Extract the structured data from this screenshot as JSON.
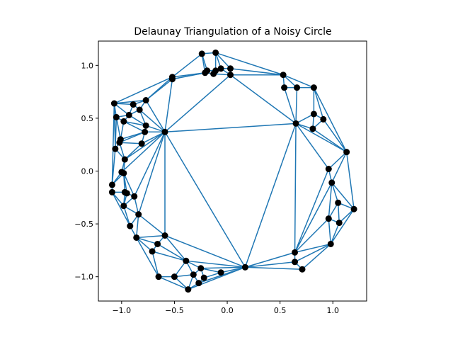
{
  "chart_data": {
    "type": "scatter",
    "title": "Delaunay Triangulation of a Noisy Circle",
    "xlabel": "",
    "ylabel": "",
    "xlim": [
      -1.22,
      1.32
    ],
    "ylim": [
      -1.23,
      1.23
    ],
    "xticks": [
      -1.0,
      -0.5,
      0.0,
      0.5,
      1.0
    ],
    "xtick_labels": [
      "−1.0",
      "−0.5",
      "0.0",
      "0.5",
      "1.0"
    ],
    "yticks": [
      -1.0,
      -0.5,
      0.0,
      0.5,
      1.0
    ],
    "ytick_labels": [
      "−1.0",
      "−0.5",
      "0.0",
      "0.5",
      "1.0"
    ],
    "grid": false,
    "edge_color": "#1f77b4",
    "point_color": "#000000",
    "points": [
      [
        -0.24,
        1.11
      ],
      [
        -0.11,
        1.12
      ],
      [
        -0.19,
        0.95
      ],
      [
        -0.21,
        0.93
      ],
      [
        -0.13,
        0.92
      ],
      [
        -0.11,
        0.95
      ],
      [
        -0.06,
        0.97
      ],
      [
        0.03,
        0.97
      ],
      [
        0.03,
        0.91
      ],
      [
        -0.52,
        0.89
      ],
      [
        -0.52,
        0.87
      ],
      [
        0.53,
        0.91
      ],
      [
        0.54,
        0.79
      ],
      [
        0.66,
        0.79
      ],
      [
        0.82,
        0.79
      ],
      [
        0.82,
        0.54
      ],
      [
        0.91,
        0.49
      ],
      [
        0.81,
        0.4
      ],
      [
        0.65,
        0.45
      ],
      [
        1.13,
        0.18
      ],
      [
        -0.77,
        0.67
      ],
      [
        -0.89,
        0.63
      ],
      [
        -1.07,
        0.64
      ],
      [
        -0.83,
        0.58
      ],
      [
        -0.93,
        0.53
      ],
      [
        -1.05,
        0.51
      ],
      [
        -0.98,
        0.47
      ],
      [
        -0.77,
        0.43
      ],
      [
        -0.78,
        0.37
      ],
      [
        -0.59,
        0.37
      ],
      [
        -1.01,
        0.3
      ],
      [
        -1.02,
        0.27
      ],
      [
        -0.81,
        0.26
      ],
      [
        -1.06,
        0.21
      ],
      [
        -0.97,
        0.11
      ],
      [
        -1.0,
        -0.01
      ],
      [
        -0.98,
        -0.02
      ],
      [
        -1.09,
        -0.13
      ],
      [
        -1.09,
        -0.2
      ],
      [
        -0.97,
        -0.2
      ],
      [
        -0.95,
        -0.21
      ],
      [
        -0.88,
        -0.24
      ],
      [
        -0.98,
        -0.33
      ],
      [
        -0.84,
        -0.41
      ],
      [
        -0.92,
        -0.52
      ],
      [
        -0.86,
        -0.63
      ],
      [
        -0.59,
        -0.61
      ],
      [
        -0.66,
        -0.69
      ],
      [
        -0.71,
        -0.76
      ],
      [
        -0.65,
        -1.0
      ],
      [
        -0.5,
        -1.0
      ],
      [
        -0.39,
        -0.85
      ],
      [
        -0.32,
        -0.98
      ],
      [
        -0.25,
        -0.92
      ],
      [
        -0.22,
        -1.01
      ],
      [
        -0.27,
        -1.06
      ],
      [
        -0.37,
        -1.12
      ],
      [
        -0.06,
        -0.96
      ],
      [
        0.17,
        -0.91
      ],
      [
        0.64,
        -0.77
      ],
      [
        0.64,
        -0.86
      ],
      [
        0.71,
        -0.93
      ],
      [
        0.98,
        -0.69
      ],
      [
        0.96,
        -0.45
      ],
      [
        1.06,
        -0.49
      ],
      [
        1.05,
        -0.3
      ],
      [
        1.2,
        -0.36
      ],
      [
        0.99,
        -0.11
      ],
      [
        0.96,
        0.02
      ]
    ],
    "edges": [
      [
        0,
        1
      ],
      [
        0,
        2
      ],
      [
        0,
        3
      ],
      [
        0,
        9
      ],
      [
        1,
        5
      ],
      [
        1,
        6
      ],
      [
        1,
        7
      ],
      [
        1,
        11
      ],
      [
        2,
        3
      ],
      [
        2,
        5
      ],
      [
        3,
        4
      ],
      [
        3,
        9
      ],
      [
        3,
        10
      ],
      [
        4,
        5
      ],
      [
        4,
        8
      ],
      [
        5,
        6
      ],
      [
        6,
        7
      ],
      [
        6,
        8
      ],
      [
        7,
        8
      ],
      [
        7,
        11
      ],
      [
        8,
        11
      ],
      [
        8,
        18
      ],
      [
        8,
        29
      ],
      [
        9,
        10
      ],
      [
        9,
        22
      ],
      [
        9,
        20
      ],
      [
        10,
        20
      ],
      [
        10,
        29
      ],
      [
        10,
        3
      ],
      [
        11,
        12
      ],
      [
        11,
        13
      ],
      [
        11,
        14
      ],
      [
        12,
        13
      ],
      [
        12,
        18
      ],
      [
        13,
        14
      ],
      [
        13,
        18
      ],
      [
        14,
        15
      ],
      [
        14,
        16
      ],
      [
        14,
        19
      ],
      [
        15,
        16
      ],
      [
        15,
        17
      ],
      [
        15,
        18
      ],
      [
        16,
        17
      ],
      [
        16,
        19
      ],
      [
        17,
        18
      ],
      [
        17,
        19
      ],
      [
        18,
        19
      ],
      [
        18,
        29
      ],
      [
        18,
        68
      ],
      [
        18,
        58
      ],
      [
        18,
        59
      ],
      [
        19,
        68
      ],
      [
        19,
        67
      ],
      [
        19,
        66
      ],
      [
        20,
        21
      ],
      [
        20,
        22
      ],
      [
        20,
        23
      ],
      [
        20,
        29
      ],
      [
        21,
        22
      ],
      [
        21,
        23
      ],
      [
        21,
        24
      ],
      [
        22,
        24
      ],
      [
        22,
        25
      ],
      [
        22,
        33
      ],
      [
        22,
        37
      ],
      [
        23,
        24
      ],
      [
        23,
        27
      ],
      [
        23,
        29
      ],
      [
        24,
        25
      ],
      [
        24,
        26
      ],
      [
        24,
        27
      ],
      [
        25,
        26
      ],
      [
        25,
        30
      ],
      [
        25,
        33
      ],
      [
        26,
        27
      ],
      [
        26,
        30
      ],
      [
        26,
        28
      ],
      [
        27,
        28
      ],
      [
        27,
        29
      ],
      [
        28,
        29
      ],
      [
        28,
        30
      ],
      [
        28,
        31
      ],
      [
        28,
        32
      ],
      [
        29,
        32
      ],
      [
        29,
        34
      ],
      [
        29,
        35
      ],
      [
        29,
        41
      ],
      [
        29,
        43
      ],
      [
        29,
        46
      ],
      [
        29,
        58
      ],
      [
        30,
        31
      ],
      [
        31,
        32
      ],
      [
        31,
        33
      ],
      [
        31,
        34
      ],
      [
        32,
        34
      ],
      [
        33,
        34
      ],
      [
        33,
        37
      ],
      [
        34,
        35
      ],
      [
        34,
        36
      ],
      [
        35,
        36
      ],
      [
        35,
        37
      ],
      [
        36,
        37
      ],
      [
        36,
        39
      ],
      [
        36,
        40
      ],
      [
        36,
        41
      ],
      [
        37,
        38
      ],
      [
        38,
        39
      ],
      [
        38,
        42
      ],
      [
        38,
        44
      ],
      [
        39,
        40
      ],
      [
        39,
        42
      ],
      [
        40,
        41
      ],
      [
        40,
        42
      ],
      [
        41,
        42
      ],
      [
        41,
        43
      ],
      [
        42,
        43
      ],
      [
        42,
        44
      ],
      [
        43,
        44
      ],
      [
        43,
        45
      ],
      [
        43,
        46
      ],
      [
        44,
        45
      ],
      [
        45,
        46
      ],
      [
        45,
        47
      ],
      [
        45,
        48
      ],
      [
        45,
        49
      ],
      [
        46,
        47
      ],
      [
        46,
        51
      ],
      [
        46,
        58
      ],
      [
        47,
        48
      ],
      [
        47,
        51
      ],
      [
        48,
        49
      ],
      [
        48,
        51
      ],
      [
        49,
        50
      ],
      [
        49,
        56
      ],
      [
        50,
        51
      ],
      [
        50,
        52
      ],
      [
        50,
        56
      ],
      [
        51,
        52
      ],
      [
        51,
        53
      ],
      [
        51,
        58
      ],
      [
        52,
        53
      ],
      [
        52,
        55
      ],
      [
        52,
        56
      ],
      [
        53,
        54
      ],
      [
        53,
        57
      ],
      [
        53,
        58
      ],
      [
        54,
        55
      ],
      [
        54,
        57
      ],
      [
        55,
        56
      ],
      [
        55,
        58
      ],
      [
        56,
        58
      ],
      [
        57,
        58
      ],
      [
        58,
        59
      ],
      [
        58,
        60
      ],
      [
        58,
        61
      ],
      [
        59,
        60
      ],
      [
        59,
        62
      ],
      [
        59,
        63
      ],
      [
        59,
        67
      ],
      [
        59,
        68
      ],
      [
        60,
        61
      ],
      [
        60,
        62
      ],
      [
        61,
        62
      ],
      [
        62,
        63
      ],
      [
        62,
        64
      ],
      [
        62,
        66
      ],
      [
        63,
        64
      ],
      [
        63,
        65
      ],
      [
        63,
        67
      ],
      [
        64,
        65
      ],
      [
        64,
        66
      ],
      [
        65,
        66
      ],
      [
        65,
        67
      ],
      [
        66,
        67
      ],
      [
        67,
        68
      ]
    ]
  }
}
